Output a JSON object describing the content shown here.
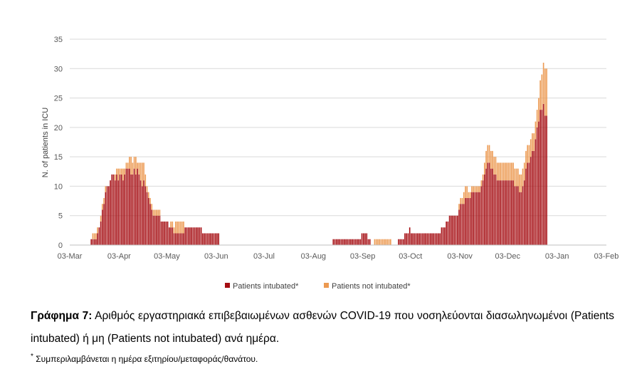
{
  "chart_data": {
    "type": "bar",
    "stacked": true,
    "ylabel": "N. of patients in ICU",
    "ylim": [
      0,
      35
    ],
    "yticks": [
      0,
      5,
      10,
      15,
      20,
      25,
      30,
      35
    ],
    "grid": true,
    "legend_position": "bottom",
    "x_ticks": [
      "03-Mar",
      "03-Apr",
      "03-May",
      "03-Jun",
      "03-Jul",
      "03-Aug",
      "03-Sep",
      "03-Oct",
      "03-Nov",
      "03-Dec",
      "03-Jan",
      "03-Feb"
    ],
    "colors": {
      "intubated": "#a50d12",
      "not_intubated": "#ec9a52"
    },
    "series": [
      {
        "name": "Patients intubated*",
        "segments": [
          {
            "start": "2020-03-16",
            "values": [
              1,
              1,
              1,
              1,
              2,
              3,
              4,
              6,
              7,
              9,
              10,
              10,
              11,
              12,
              12,
              11,
              12,
              11,
              12,
              12,
              11,
              12,
              13,
              13,
              13,
              12,
              12,
              13,
              12,
              13,
              12,
              11,
              10,
              11,
              10,
              9,
              8,
              7,
              6,
              5,
              5,
              5,
              5,
              5,
              4,
              4,
              4,
              4,
              4,
              3,
              3,
              3,
              2,
              2,
              2,
              2,
              2,
              2,
              2,
              3,
              3,
              3,
              3,
              3,
              3,
              3,
              3,
              3,
              3,
              3,
              2,
              2,
              2,
              2,
              2,
              2,
              2,
              2,
              2,
              2,
              2
            ]
          },
          {
            "start": "2020-08-15",
            "values": [
              1,
              1,
              1,
              1,
              1,
              1,
              1,
              1,
              1,
              1,
              1,
              1,
              1,
              1,
              1,
              1,
              1,
              1,
              2,
              2,
              2,
              2,
              1,
              1
            ]
          },
          {
            "start": "2020-09-25",
            "values": [
              1,
              1,
              1,
              1,
              2,
              2,
              2,
              3,
              2,
              2,
              2,
              2,
              2,
              2,
              2,
              2,
              2,
              2,
              2,
              2,
              2,
              2,
              2,
              2,
              2,
              2,
              2,
              3,
              3,
              3,
              4,
              4,
              5,
              5,
              5,
              5,
              5,
              5,
              6,
              7,
              7,
              7,
              8,
              8,
              8,
              8,
              9,
              9,
              9,
              9,
              9,
              9,
              10,
              11,
              12,
              13,
              14,
              14,
              13,
              13,
              12,
              12,
              11,
              11,
              11,
              11,
              11,
              11,
              11,
              11,
              11,
              11,
              11,
              10,
              10,
              10,
              9,
              9,
              10,
              11,
              13,
              14,
              14,
              15,
              16,
              16,
              18,
              20,
              21,
              23,
              23,
              24,
              22,
              22
            ]
          }
        ]
      },
      {
        "name": "Patients not intubated*",
        "segments": [
          {
            "start": "2020-03-16",
            "values": [
              0,
              1,
              1,
              1,
              1,
              0,
              1,
              1,
              1,
              1,
              0,
              0,
              0,
              0,
              0,
              1,
              1,
              2,
              1,
              1,
              2,
              1,
              1,
              1,
              2,
              3,
              2,
              2,
              3,
              1,
              2,
              3,
              4,
              3,
              2,
              1,
              1,
              1,
              1,
              1,
              1,
              1,
              1,
              1,
              0,
              0,
              0,
              0,
              0,
              0,
              1,
              1,
              1,
              2,
              2,
              2,
              2,
              2,
              2,
              0,
              0,
              0,
              0,
              0,
              0,
              0,
              0,
              0,
              0,
              0,
              0,
              0,
              0,
              0,
              0,
              0,
              0,
              0,
              0,
              0,
              0
            ]
          },
          {
            "start": "2020-08-15",
            "values": [
              0,
              0,
              0,
              0,
              0,
              0,
              0,
              0,
              0,
              0,
              0,
              0,
              0,
              0,
              0,
              0,
              0,
              0,
              0,
              0,
              0,
              0,
              0,
              0,
              0,
              0,
              1,
              1,
              1,
              1,
              1,
              1,
              1,
              1,
              1,
              1,
              1
            ]
          },
          {
            "start": "2020-09-25",
            "values": [
              0,
              0,
              0,
              0,
              0,
              0,
              0,
              0,
              0,
              0,
              0,
              0,
              0,
              0,
              0,
              0,
              0,
              0,
              0,
              0,
              0,
              0,
              0,
              0,
              0,
              0,
              0,
              0,
              0,
              0,
              0,
              0,
              0,
              0,
              0,
              0,
              0,
              0,
              1,
              1,
              1,
              2,
              2,
              2,
              1,
              1,
              1,
              1,
              1,
              1,
              1,
              1,
              1,
              1,
              2,
              3,
              3,
              3,
              3,
              3,
              3,
              3,
              3,
              3,
              3,
              3,
              3,
              3,
              3,
              3,
              3,
              3,
              3,
              3,
              3,
              3,
              3,
              3,
              3,
              3,
              3,
              3,
              3,
              3,
              3,
              3,
              3,
              3,
              4,
              5,
              6,
              7,
              8,
              8
            ]
          }
        ]
      }
    ]
  },
  "caption": {
    "lead": "Γράφημα 7:",
    "text": " Αριθμός εργαστηριακά επιβεβαιωμένων ασθενών COVID-19 που νοσηλεύονται διασωληνωμένοι (Patients intubated) ή μη (Patients not intubated) ανά ημέρα."
  },
  "footnote": {
    "mark": "*",
    "text": " Συμπεριλαμβάνεται η ημέρα εξιτηρίου/μεταφοράς/θανάτου."
  }
}
